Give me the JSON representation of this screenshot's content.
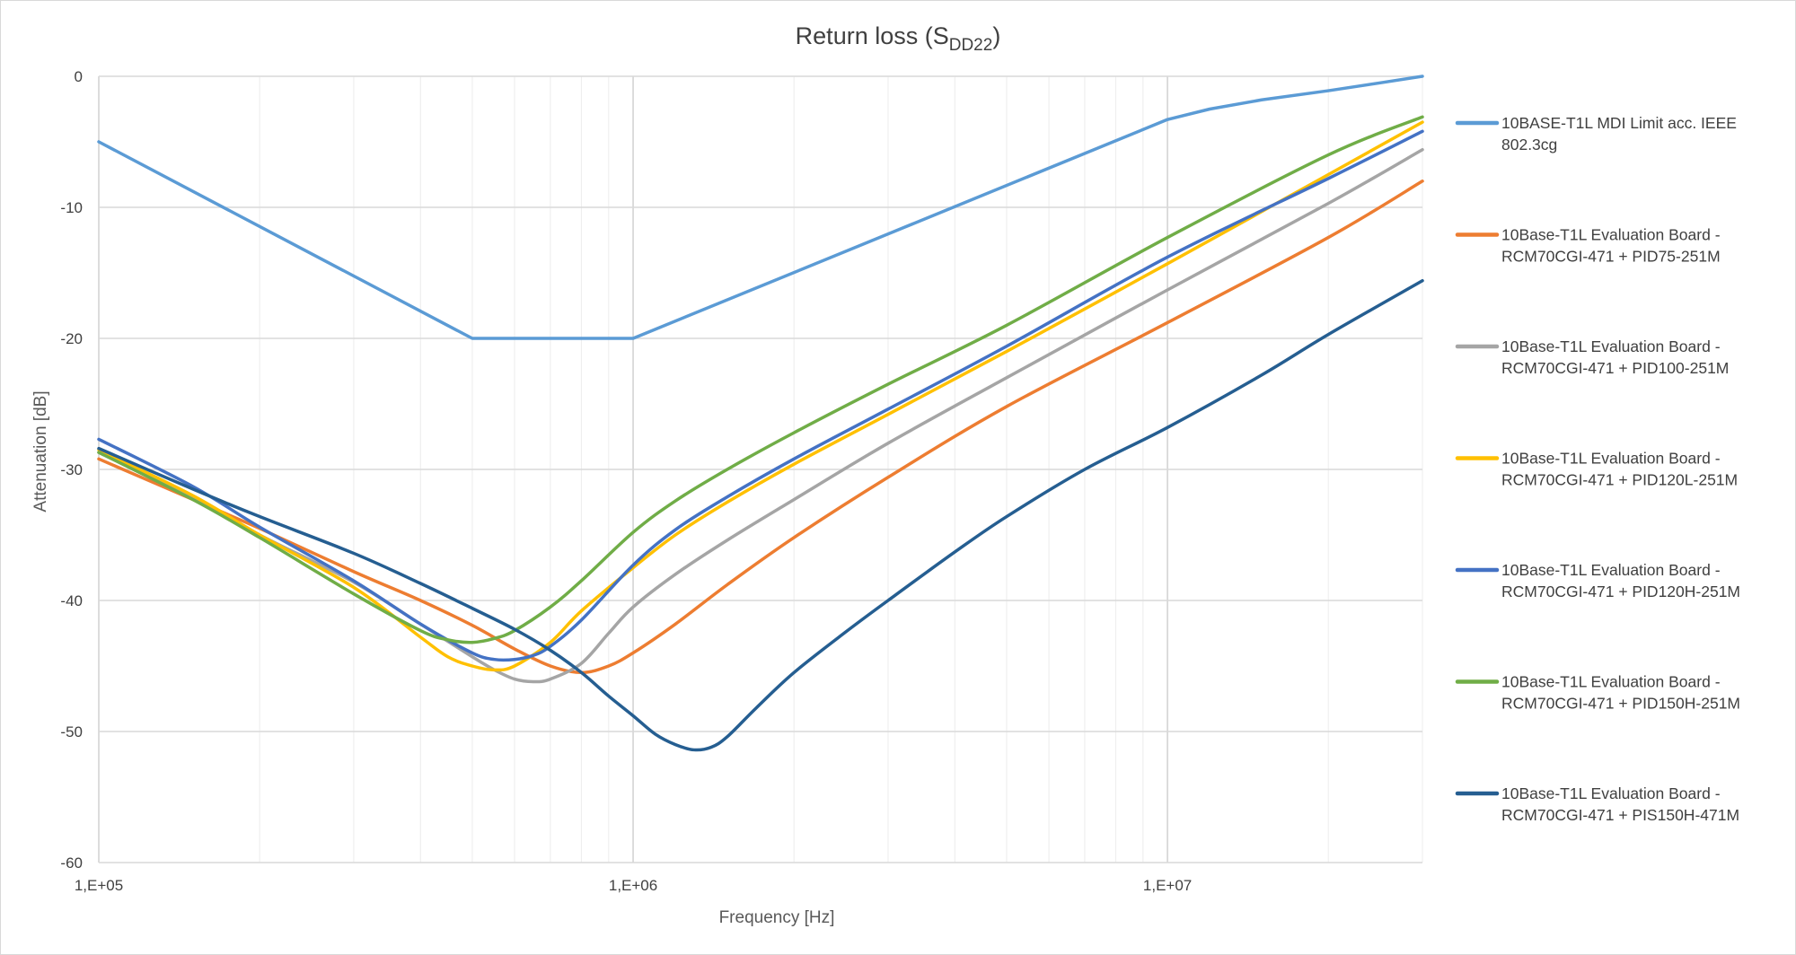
{
  "chart_data": {
    "type": "line",
    "title": "Return loss (S",
    "title_subscript": "DD22",
    "title_close": ")",
    "xlabel": "Frequency [Hz]",
    "ylabel": "Attenuation [dB]",
    "xscale": "log",
    "xlim": [
      100000,
      30000000
    ],
    "ylim": [
      -60,
      0
    ],
    "x_ticks": [
      {
        "value": 100000,
        "label": "1,E+05"
      },
      {
        "value": 1000000,
        "label": "1,E+06"
      },
      {
        "value": 10000000,
        "label": "1,E+07"
      }
    ],
    "y_ticks": [
      {
        "value": 0,
        "label": "0"
      },
      {
        "value": -10,
        "label": "-10"
      },
      {
        "value": -20,
        "label": "-20"
      },
      {
        "value": -30,
        "label": "-30"
      },
      {
        "value": -40,
        "label": "-40"
      },
      {
        "value": -50,
        "label": "-50"
      },
      {
        "value": -60,
        "label": "-60"
      }
    ],
    "grid": true,
    "legend_position": "right",
    "series": [
      {
        "name": "10BASE-T1L MDI Limit acc. IEEE 802.3cg",
        "legend_lines": [
          "10BASE-T1L MDI Limit acc. IEEE",
          "802.3cg"
        ],
        "color": "#5b9bd5",
        "points": [
          [
            100000,
            -5
          ],
          [
            500000,
            -20
          ],
          [
            1000000,
            -20
          ],
          [
            10000000,
            -3.3
          ],
          [
            12000000,
            -2.5
          ],
          [
            15000000,
            -1.8
          ],
          [
            20000000,
            -1.1
          ],
          [
            25000000,
            -0.5
          ],
          [
            30000000,
            0
          ]
        ]
      },
      {
        "name": "10Base-T1L Evaluation Board - RCM70CGI-471 + PID75-251M",
        "legend_lines": [
          "10Base-T1L Evaluation Board -",
          "RCM70CGI-471 + PID75-251M"
        ],
        "color": "#ed7d31",
        "points": [
          [
            100000,
            -29.2
          ],
          [
            150000,
            -32.3
          ],
          [
            200000,
            -34.5
          ],
          [
            300000,
            -37.8
          ],
          [
            400000,
            -40.0
          ],
          [
            500000,
            -41.9
          ],
          [
            600000,
            -43.7
          ],
          [
            700000,
            -45.0
          ],
          [
            800000,
            -45.5
          ],
          [
            900000,
            -45.0
          ],
          [
            1000000,
            -44.0
          ],
          [
            1200000,
            -41.8
          ],
          [
            1500000,
            -38.8
          ],
          [
            2000000,
            -35.2
          ],
          [
            3000000,
            -30.6
          ],
          [
            5000000,
            -25.2
          ],
          [
            10000000,
            -18.8
          ],
          [
            20000000,
            -12.3
          ],
          [
            30000000,
            -8.0
          ]
        ]
      },
      {
        "name": "10Base-T1L Evaluation Board - RCM70CGI-471 + PID100-251M",
        "legend_lines": [
          "10Base-T1L Evaluation Board -",
          "RCM70CGI-471 + PID100-251M"
        ],
        "color": "#a5a5a5",
        "points": [
          [
            100000,
            -28.7
          ],
          [
            150000,
            -32.2
          ],
          [
            200000,
            -35.0
          ],
          [
            300000,
            -38.6
          ],
          [
            400000,
            -41.8
          ],
          [
            500000,
            -44.3
          ],
          [
            550000,
            -45.3
          ],
          [
            600000,
            -46.0
          ],
          [
            650000,
            -46.2
          ],
          [
            700000,
            -46.0
          ],
          [
            800000,
            -44.8
          ],
          [
            900000,
            -42.5
          ],
          [
            1000000,
            -40.5
          ],
          [
            1200000,
            -38.0
          ],
          [
            1500000,
            -35.4
          ],
          [
            2000000,
            -32.3
          ],
          [
            3000000,
            -28.0
          ],
          [
            5000000,
            -23.0
          ],
          [
            10000000,
            -16.3
          ],
          [
            20000000,
            -9.7
          ],
          [
            30000000,
            -5.6
          ]
        ]
      },
      {
        "name": "10Base-T1L Evaluation Board - RCM70CGI-471 + PID120L-251M",
        "legend_lines": [
          "10Base-T1L Evaluation Board -",
          "RCM70CGI-471 + PID120L-251M"
        ],
        "color": "#ffc000",
        "points": [
          [
            100000,
            -28.5
          ],
          [
            150000,
            -32.0
          ],
          [
            200000,
            -35.0
          ],
          [
            300000,
            -39.0
          ],
          [
            400000,
            -42.8
          ],
          [
            450000,
            -44.3
          ],
          [
            500000,
            -45.0
          ],
          [
            550000,
            -45.3
          ],
          [
            600000,
            -45.0
          ],
          [
            700000,
            -43.2
          ],
          [
            800000,
            -40.8
          ],
          [
            1000000,
            -37.5
          ],
          [
            1200000,
            -35.0
          ],
          [
            1500000,
            -32.5
          ],
          [
            2000000,
            -29.6
          ],
          [
            3000000,
            -25.8
          ],
          [
            5000000,
            -21.0
          ],
          [
            10000000,
            -14.3
          ],
          [
            20000000,
            -7.5
          ],
          [
            30000000,
            -3.5
          ]
        ]
      },
      {
        "name": "10Base-T1L Evaluation Board - RCM70CGI-471 + PID120H-251M",
        "legend_lines": [
          "10Base-T1L Evaluation Board -",
          "RCM70CGI-471 + PID120H-251M"
        ],
        "color": "#4472c4",
        "points": [
          [
            100000,
            -27.7
          ],
          [
            150000,
            -31.3
          ],
          [
            200000,
            -34.4
          ],
          [
            300000,
            -38.5
          ],
          [
            400000,
            -41.8
          ],
          [
            500000,
            -44.0
          ],
          [
            550000,
            -44.5
          ],
          [
            600000,
            -44.5
          ],
          [
            650000,
            -44.2
          ],
          [
            700000,
            -43.5
          ],
          [
            800000,
            -41.5
          ],
          [
            1000000,
            -37.3
          ],
          [
            1200000,
            -34.6
          ],
          [
            1500000,
            -32.1
          ],
          [
            2000000,
            -29.2
          ],
          [
            3000000,
            -25.4
          ],
          [
            5000000,
            -20.6
          ],
          [
            10000000,
            -13.8
          ],
          [
            20000000,
            -7.8
          ],
          [
            30000000,
            -4.2
          ]
        ]
      },
      {
        "name": "10Base-T1L Evaluation Board - RCM70CGI-471 + PID150H-251M",
        "legend_lines": [
          "10Base-T1L Evaluation Board -",
          "RCM70CGI-471 + PID150H-251M"
        ],
        "color": "#70ad47",
        "points": [
          [
            100000,
            -28.7
          ],
          [
            150000,
            -32.3
          ],
          [
            200000,
            -35.2
          ],
          [
            300000,
            -39.5
          ],
          [
            400000,
            -42.3
          ],
          [
            450000,
            -43.0
          ],
          [
            500000,
            -43.2
          ],
          [
            550000,
            -42.9
          ],
          [
            600000,
            -42.3
          ],
          [
            700000,
            -40.5
          ],
          [
            800000,
            -38.5
          ],
          [
            1000000,
            -34.8
          ],
          [
            1200000,
            -32.4
          ],
          [
            1500000,
            -30.0
          ],
          [
            2000000,
            -27.2
          ],
          [
            3000000,
            -23.5
          ],
          [
            5000000,
            -19.0
          ],
          [
            10000000,
            -12.3
          ],
          [
            20000000,
            -6.0
          ],
          [
            30000000,
            -3.1
          ]
        ]
      },
      {
        "name": "10Base-T1L Evaluation Board - RCM70CGI-471 + PIS150H-471M",
        "legend_lines": [
          "10Base-T1L Evaluation Board -",
          "RCM70CGI-471 + PIS150H-471M"
        ],
        "color": "#255e91",
        "points": [
          [
            100000,
            -28.4
          ],
          [
            150000,
            -31.5
          ],
          [
            200000,
            -33.6
          ],
          [
            300000,
            -36.4
          ],
          [
            400000,
            -38.7
          ],
          [
            500000,
            -40.6
          ],
          [
            600000,
            -42.2
          ],
          [
            700000,
            -43.8
          ],
          [
            800000,
            -45.5
          ],
          [
            900000,
            -47.3
          ],
          [
            1000000,
            -48.8
          ],
          [
            1100000,
            -50.2
          ],
          [
            1200000,
            -51.0
          ],
          [
            1300000,
            -51.4
          ],
          [
            1400000,
            -51.2
          ],
          [
            1500000,
            -50.4
          ],
          [
            1700000,
            -48.2
          ],
          [
            2000000,
            -45.5
          ],
          [
            2500000,
            -42.4
          ],
          [
            3000000,
            -40.0
          ],
          [
            4000000,
            -36.3
          ],
          [
            5000000,
            -33.6
          ],
          [
            7000000,
            -30.0
          ],
          [
            10000000,
            -26.8
          ],
          [
            15000000,
            -22.8
          ],
          [
            20000000,
            -19.7
          ],
          [
            30000000,
            -15.6
          ]
        ]
      }
    ]
  }
}
